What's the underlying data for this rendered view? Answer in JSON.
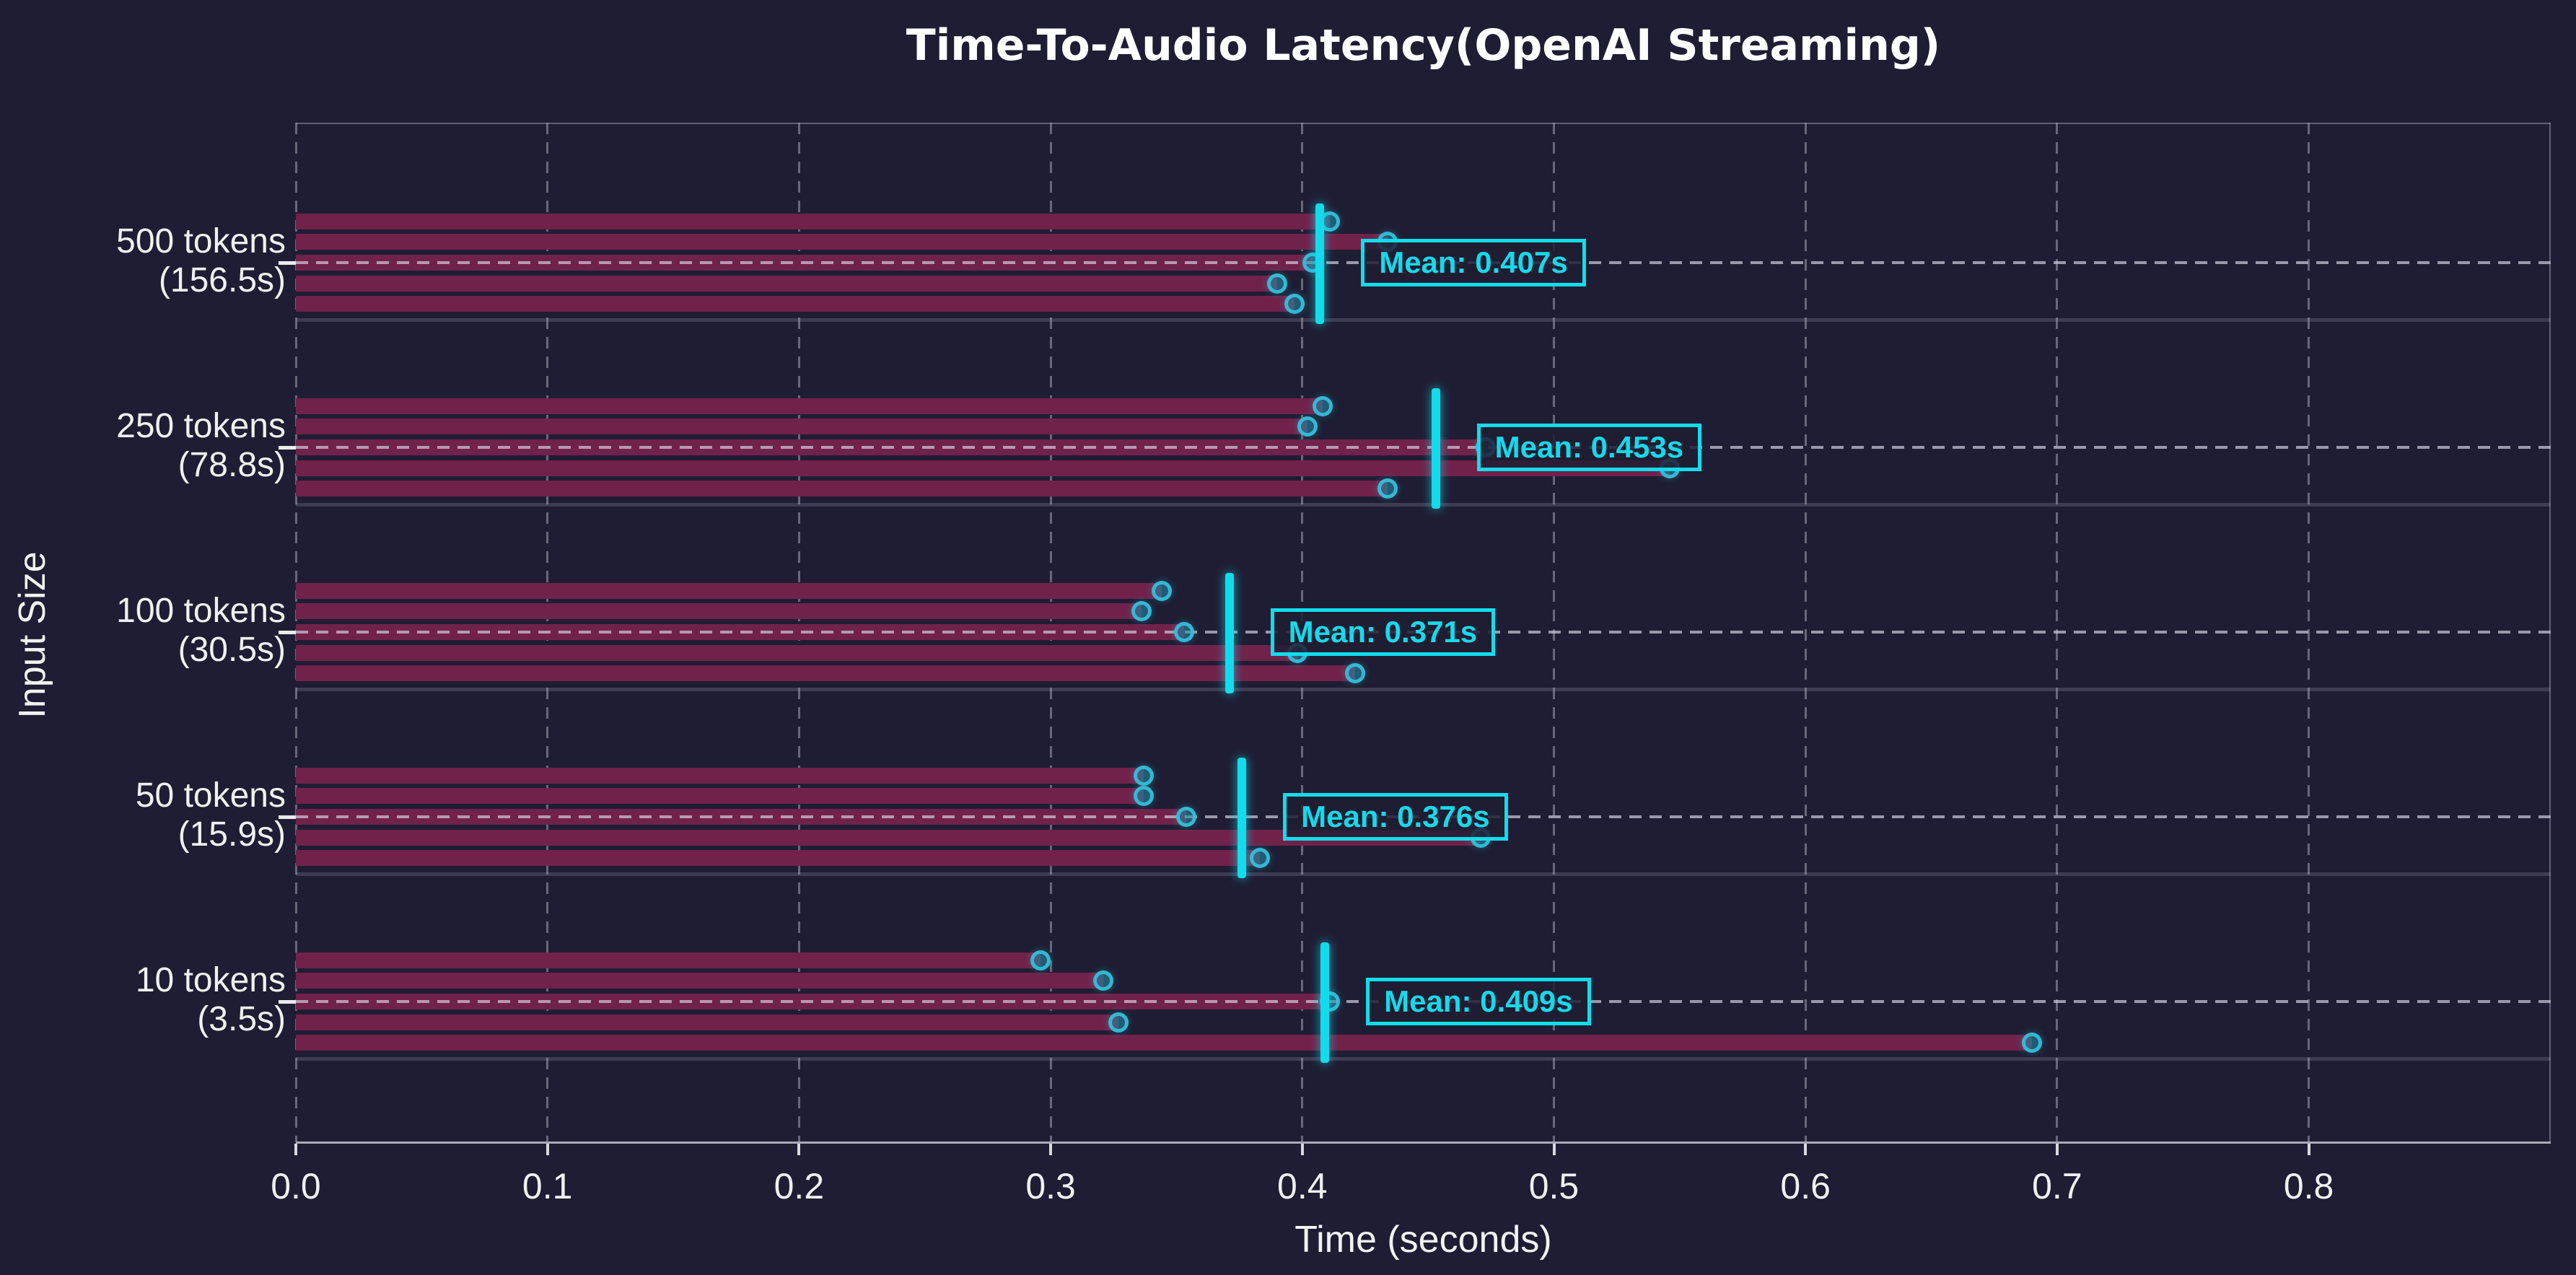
{
  "title": "Time-To-Audio Latency(OpenAI Streaming)",
  "xlabel": "Time (seconds)",
  "ylabel": "Input Size",
  "chart_data": {
    "type": "bar",
    "orientation": "horizontal",
    "title": "Time-To-Audio Latency(OpenAI Streaming)",
    "xlabel": "Time (seconds)",
    "ylabel": "Input Size",
    "xlim": [
      0.0,
      0.896
    ],
    "x_ticks": [
      0.0,
      0.1,
      0.2,
      0.3,
      0.4,
      0.5,
      0.6,
      0.7,
      0.8
    ],
    "x_tick_labels": [
      "0.0",
      "0.1",
      "0.2",
      "0.3",
      "0.4",
      "0.5",
      "0.6",
      "0.7",
      "0.8"
    ],
    "grid": "vertical dashed gridlines; dashed horizontal line at each category center",
    "legend": "none",
    "groups": [
      {
        "label": "500 tokens",
        "sublabel": "(156.5s)",
        "runs": [
          0.411,
          0.434,
          0.404,
          0.39,
          0.397
        ],
        "mean": 0.407,
        "mean_label": "Mean: 0.407s"
      },
      {
        "label": "250 tokens",
        "sublabel": "(78.8s)",
        "runs": [
          0.408,
          0.402,
          0.473,
          0.546,
          0.434
        ],
        "mean": 0.453,
        "mean_label": "Mean: 0.453s"
      },
      {
        "label": "100 tokens",
        "sublabel": "(30.5s)",
        "runs": [
          0.344,
          0.336,
          0.353,
          0.398,
          0.421
        ],
        "mean": 0.371,
        "mean_label": "Mean: 0.371s"
      },
      {
        "label": "50 tokens",
        "sublabel": "(15.9s)",
        "runs": [
          0.337,
          0.337,
          0.354,
          0.471,
          0.383
        ],
        "mean": 0.376,
        "mean_label": "Mean: 0.376s"
      },
      {
        "label": "10 tokens",
        "sublabel": "(3.5s)",
        "runs": [
          0.296,
          0.321,
          0.411,
          0.327,
          0.69
        ],
        "mean": 0.409,
        "mean_label": "Mean: 0.409s"
      }
    ]
  },
  "colors": {
    "background": "#1f1d33",
    "bar": "#71224a",
    "dot_edge": "#37bed8",
    "dot_fill": "rgba(27,146,173,0.55)",
    "mean_line": "#12dcec",
    "mean_box_border": "#12dcec",
    "mean_text": "#16d9ea",
    "grid": "rgba(165,165,180,0.55)",
    "category_line": "rgba(208,205,222,0.7)",
    "text": "#f2f2f2",
    "title_text": "#ffffff"
  }
}
